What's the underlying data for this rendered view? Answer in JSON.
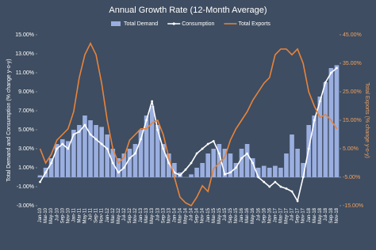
{
  "chart_data": {
    "type": "bar-line",
    "title": "Annual Growth Rate (12-Month Average)",
    "y_label": "Total Demand and Consumption (% change y-o-y)",
    "y2_label": "Total Exports (% change y-o-y)",
    "categories": [
      "Jan-10",
      "Mar-10",
      "May-10",
      "Jul-10",
      "Sep-10",
      "Nov-10",
      "Jan-11",
      "Mar-11",
      "May-11",
      "Jul-11",
      "Sep-11",
      "Nov-11",
      "Jan-12",
      "Mar-12",
      "May-12",
      "Jul-12",
      "Sep-12",
      "Nov-12",
      "Jan-13",
      "Mar-13",
      "May-13",
      "Jul-13",
      "Sep-13",
      "Nov-13",
      "Jan-14",
      "Mar-14",
      "May-14",
      "Jul-14",
      "Sep-14",
      "Nov-14",
      "Jan-15",
      "Mar-15",
      "May-15",
      "Jul-15",
      "Sep-15",
      "Nov-15",
      "Jan-16",
      "Mar-16",
      "May-16",
      "Jul-16",
      "Sep-16",
      "Nov-16",
      "Jan-17",
      "Mar-17",
      "May-17",
      "Jul-17",
      "Sep-17",
      "Nov-17",
      "Jan-18",
      "Mar-18",
      "May-18",
      "Jul-18",
      "Sep-18",
      "Nov-18"
    ],
    "series": [
      {
        "name": "Total Demand",
        "kind": "bar",
        "color": "#9aaee0",
        "values": [
          0.2,
          1.0,
          2.0,
          3.5,
          4.0,
          3.8,
          5.0,
          5.5,
          6.5,
          6.0,
          5.5,
          5.3,
          4.5,
          3.0,
          2.0,
          2.5,
          3.0,
          3.5,
          5.0,
          6.5,
          7.5,
          5.5,
          3.5,
          2.5,
          1.5,
          0.5,
          0.0,
          0.3,
          1.0,
          1.5,
          2.5,
          3.0,
          3.5,
          3.0,
          2.5,
          1.5,
          3.0,
          3.5,
          2.0,
          1.0,
          1.2,
          1.0,
          1.2,
          1.0,
          2.5,
          4.5,
          3.0,
          1.5,
          5.5,
          6.5,
          8.5,
          10.0,
          11.5,
          11.8
        ]
      },
      {
        "name": "Consumption",
        "kind": "line",
        "color": "#ffffff",
        "markers": true,
        "values": [
          -0.5,
          0.5,
          1.5,
          3.0,
          3.5,
          3.0,
          4.5,
          4.8,
          5.5,
          4.5,
          4.0,
          3.5,
          3.0,
          1.5,
          0.5,
          1.0,
          2.0,
          2.5,
          4.0,
          6.0,
          8.0,
          5.0,
          3.0,
          1.5,
          0.5,
          0.2,
          0.8,
          1.5,
          2.5,
          3.0,
          3.5,
          3.8,
          2.5,
          0.3,
          0.5,
          1.0,
          2.0,
          2.5,
          1.5,
          0.0,
          -0.5,
          -1.0,
          -0.5,
          -1.0,
          -1.2,
          -1.5,
          -2.5,
          0.0,
          3.0,
          6.0,
          8.0,
          10.0,
          11.0,
          11.5
        ]
      },
      {
        "name": "Total Exports",
        "kind": "line",
        "axis": "y2",
        "color": "#e8833a",
        "values": [
          5,
          0,
          3,
          8,
          10,
          12,
          18,
          30,
          38,
          42,
          38,
          28,
          15,
          5,
          0,
          2,
          8,
          10,
          12,
          12,
          14,
          15,
          10,
          2,
          -5,
          -12,
          -14,
          -15,
          -12,
          -8,
          -10,
          -2,
          0,
          2,
          8,
          12,
          15,
          18,
          22,
          25,
          28,
          30,
          38,
          40,
          40,
          38,
          40,
          35,
          25,
          20,
          16,
          17,
          15,
          12
        ]
      }
    ],
    "ylim": [
      -3,
      15
    ],
    "yticks": [
      {
        "value": -3,
        "label": "-3.00%"
      },
      {
        "value": -1,
        "label": "-1.00%"
      },
      {
        "value": 1,
        "label": "1.00%"
      },
      {
        "value": 3,
        "label": "3.00%"
      },
      {
        "value": 5,
        "label": "5.00%"
      },
      {
        "value": 7,
        "label": "7.00%"
      },
      {
        "value": 9,
        "label": "9.00%"
      },
      {
        "value": 11,
        "label": "11.00%"
      },
      {
        "value": 13,
        "label": "13.00%"
      },
      {
        "value": 15,
        "label": "15.00%"
      }
    ],
    "y2lim": [
      -15,
      45
    ],
    "y2ticks": [
      {
        "value": -15,
        "label": "-15.00%"
      },
      {
        "value": -5,
        "label": "-5.00%"
      },
      {
        "value": 5,
        "label": "5.00%"
      },
      {
        "value": 15,
        "label": "15.00%"
      },
      {
        "value": 25,
        "label": "25.00%"
      },
      {
        "value": 35,
        "label": "35.00%"
      },
      {
        "value": 45,
        "label": "45.00%"
      }
    ],
    "legend": "top"
  }
}
